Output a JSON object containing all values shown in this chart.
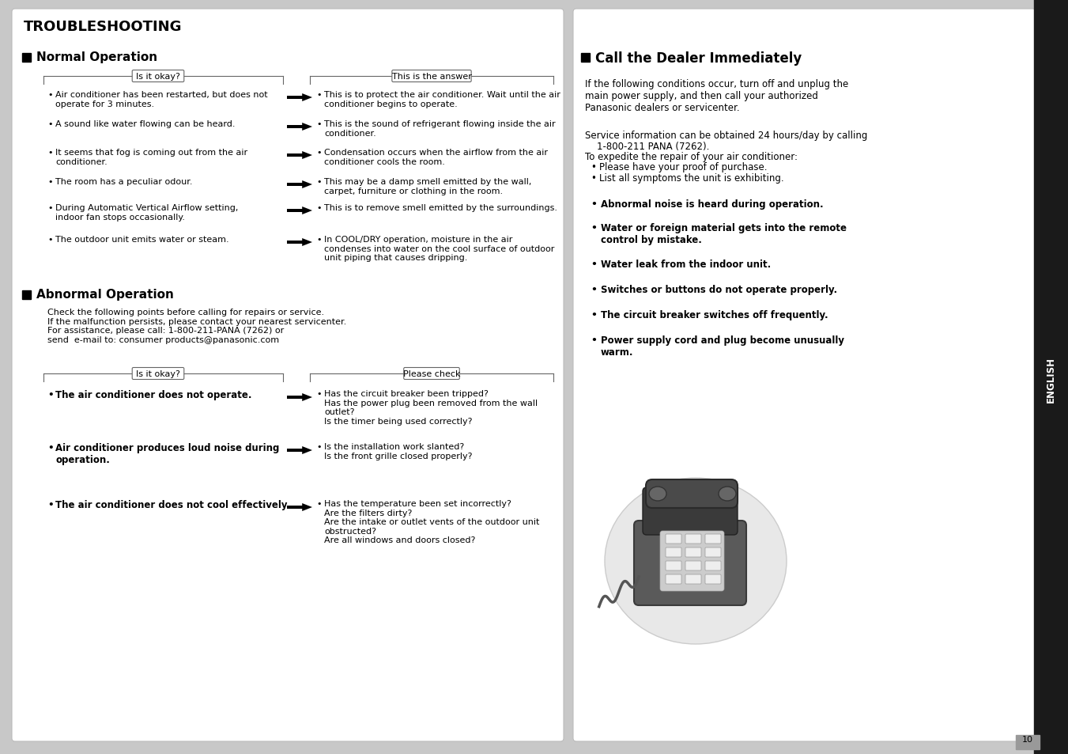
{
  "bg_outer": "#c8c8c8",
  "bg_sidebar": "#1a1a1a",
  "sidebar_text": "ENGLISH",
  "page_number": "10",
  "title": "TROUBLESHOOTING",
  "section1_title": "Normal Operation",
  "section2_title": "Abnormal Operation",
  "right_title": "Call the Dealer Immediately",
  "normal_questions": [
    "Air conditioner has been restarted, but does not\noperate for 3 minutes.",
    "A sound like water flowing can be heard.",
    "It seems that fog is coming out from the air\nconditioner.",
    "The room has a peculiar odour.",
    "During Automatic Vertical Airflow setting,\nindoor fan stops occasionally.",
    "The outdoor unit emits water or steam."
  ],
  "normal_answers": [
    "This is to protect the air conditioner. Wait until the air\nconditioner begins to operate.",
    "This is the sound of refrigerant flowing inside the air\nconditioner.",
    "Condensation occurs when the airflow from the air\nconditioner cools the room.",
    "This may be a damp smell emitted by the wall,\ncarpet, furniture or clothing in the room.",
    "This is to remove smell emitted by the surroundings.",
    "In COOL/DRY operation, moisture in the air\ncondenses into water on the cool surface of outdoor\nunit piping that causes dripping."
  ],
  "abnormal_intro": "Check the following points before calling for repairs or service.\nIf the malfunction persists, please contact your nearest servicenter.\nFor assistance, please call: 1-800-211-PANA (7262) or\nsend  e-mail to: consumer products@panasonic.com",
  "abnormal_questions": [
    "The air conditioner does not operate.",
    "Air conditioner produces loud noise during\noperation.",
    "The air conditioner does not cool effectively."
  ],
  "abnormal_answers": [
    "Has the circuit breaker been tripped?\nHas the power plug been removed from the wall\noutlet?\nIs the timer being used correctly?",
    "Is the installation work slanted?\nIs the front grille closed properly?",
    "Has the temperature been set incorrectly?\nAre the filters dirty?\nAre the intake or outlet vents of the outdoor unit\nobstructed?\nAre all windows and doors closed?"
  ],
  "right_intro": "If the following conditions occur, turn off and unplug the\nmain power supply, and then call your authorized\nPanasonic dealers or servicenter.",
  "right_service_line1": "Service information can be obtained 24 hours/day by calling",
  "right_service_line2": "    1-800-211 PANA (7262).",
  "right_service_line3": "To expedite the repair of your air conditioner:",
  "right_service_bullets": [
    "Please have your proof of purchase.",
    "List all symptoms the unit is exhibiting."
  ],
  "right_bold_items": [
    "Abnormal noise is heard during operation.",
    "Water or foreign material gets into the remote\ncontrol by mistake.",
    "Water leak from the indoor unit.",
    "Switches or buttons do not operate properly.",
    "The circuit breaker switches off frequently.",
    "Power supply cord and plug become unusually\nwarm."
  ]
}
